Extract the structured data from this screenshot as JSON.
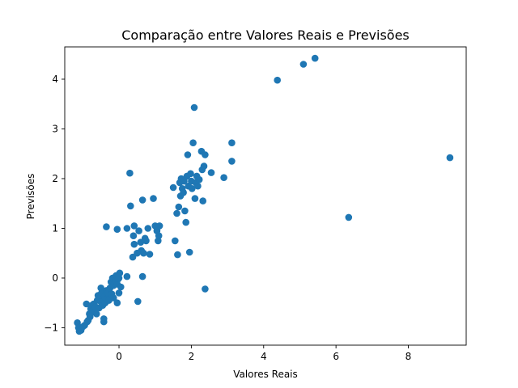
{
  "chart_data": {
    "type": "scatter",
    "title": "Comparação entre Valores Reais e Previsões",
    "xlabel": "Valores Reais",
    "ylabel": "Previsões",
    "xlim": [
      -1.5,
      9.6
    ],
    "ylim": [
      -1.35,
      4.65
    ],
    "x_ticks": [
      0,
      2,
      4,
      6,
      8
    ],
    "y_ticks": [
      -1,
      0,
      1,
      2,
      3,
      4
    ],
    "x_tick_labels": [
      "0",
      "2",
      "4",
      "6",
      "8"
    ],
    "y_tick_labels": [
      "−1",
      "0",
      "1",
      "2",
      "3",
      "4"
    ],
    "grid": false,
    "legend": "none",
    "color": "#1f77b4",
    "points": [
      [
        -1.15,
        -0.9
      ],
      [
        -1.12,
        -1.0
      ],
      [
        -1.1,
        -1.07
      ],
      [
        -1.05,
        -1.05
      ],
      [
        -1.0,
        -0.98
      ],
      [
        -0.95,
        -0.95
      ],
      [
        -0.9,
        -0.52
      ],
      [
        -0.88,
        -0.88
      ],
      [
        -0.85,
        -0.85
      ],
      [
        -0.82,
        -0.72
      ],
      [
        -0.8,
        -0.78
      ],
      [
        -0.78,
        -0.62
      ],
      [
        -0.75,
        -0.55
      ],
      [
        -0.72,
        -0.68
      ],
      [
        -0.7,
        -0.52
      ],
      [
        -0.68,
        -0.65
      ],
      [
        -0.65,
        -0.58
      ],
      [
        -0.62,
        -0.72
      ],
      [
        -0.6,
        -0.45
      ],
      [
        -0.58,
        -0.35
      ],
      [
        -0.55,
        -0.6
      ],
      [
        -0.52,
        -0.4
      ],
      [
        -0.5,
        -0.2
      ],
      [
        -0.5,
        -0.48
      ],
      [
        -0.48,
        -0.3
      ],
      [
        -0.45,
        -0.55
      ],
      [
        -0.42,
        -0.82
      ],
      [
        -0.42,
        -0.88
      ],
      [
        -0.4,
        -0.38
      ],
      [
        -0.38,
        -0.5
      ],
      [
        -0.35,
        -0.25
      ],
      [
        -0.32,
        -0.42
      ],
      [
        -0.3,
        -0.3
      ],
      [
        -0.28,
        -0.45
      ],
      [
        -0.25,
        -0.2
      ],
      [
        -0.22,
        -0.08
      ],
      [
        -0.2,
        -0.32
      ],
      [
        -0.18,
        0.0
      ],
      [
        -0.15,
        -0.15
      ],
      [
        -0.15,
        -0.4
      ],
      [
        -0.12,
        -0.1
      ],
      [
        -0.1,
        -0.05
      ],
      [
        -0.08,
        0.05
      ],
      [
        -0.05,
        -0.12
      ],
      [
        -0.05,
        -0.5
      ],
      [
        -0.02,
        -0.02
      ],
      [
        0.0,
        0.0
      ],
      [
        0.0,
        -0.3
      ],
      [
        0.02,
        0.1
      ],
      [
        0.05,
        -0.18
      ],
      [
        -0.35,
        1.03
      ],
      [
        -0.05,
        0.98
      ],
      [
        0.22,
        0.03
      ],
      [
        0.22,
        1.0
      ],
      [
        0.3,
        2.11
      ],
      [
        0.32,
        1.45
      ],
      [
        0.38,
        0.42
      ],
      [
        0.4,
        0.85
      ],
      [
        0.42,
        0.68
      ],
      [
        0.42,
        1.05
      ],
      [
        0.5,
        0.5
      ],
      [
        0.52,
        -0.47
      ],
      [
        0.55,
        0.95
      ],
      [
        0.6,
        0.72
      ],
      [
        0.62,
        0.55
      ],
      [
        0.65,
        0.03
      ],
      [
        0.65,
        1.57
      ],
      [
        0.68,
        0.5
      ],
      [
        0.72,
        0.8
      ],
      [
        0.75,
        0.75
      ],
      [
        0.8,
        1.0
      ],
      [
        0.85,
        0.48
      ],
      [
        0.95,
        1.6
      ],
      [
        1.0,
        1.05
      ],
      [
        1.05,
        0.95
      ],
      [
        1.08,
        0.75
      ],
      [
        1.1,
        0.85
      ],
      [
        1.12,
        1.05
      ],
      [
        1.5,
        1.82
      ],
      [
        1.55,
        0.75
      ],
      [
        1.6,
        1.3
      ],
      [
        1.62,
        0.47
      ],
      [
        1.65,
        1.43
      ],
      [
        1.68,
        1.92
      ],
      [
        1.7,
        1.65
      ],
      [
        1.72,
        2.0
      ],
      [
        1.75,
        1.8
      ],
      [
        1.78,
        1.72
      ],
      [
        1.8,
        1.95
      ],
      [
        1.82,
        1.35
      ],
      [
        1.85,
        1.12
      ],
      [
        1.88,
        2.05
      ],
      [
        1.9,
        2.48
      ],
      [
        1.92,
        1.85
      ],
      [
        1.95,
        0.52
      ],
      [
        1.98,
        2.1
      ],
      [
        2.0,
        1.95
      ],
      [
        2.02,
        1.8
      ],
      [
        2.05,
        2.72
      ],
      [
        2.08,
        3.43
      ],
      [
        2.1,
        1.6
      ],
      [
        2.12,
        1.92
      ],
      [
        2.15,
        2.05
      ],
      [
        2.18,
        1.85
      ],
      [
        2.22,
        1.98
      ],
      [
        2.28,
        2.55
      ],
      [
        2.3,
        2.18
      ],
      [
        2.32,
        1.55
      ],
      [
        2.35,
        2.25
      ],
      [
        2.38,
        2.48
      ],
      [
        2.38,
        -0.22
      ],
      [
        2.55,
        2.12
      ],
      [
        2.9,
        2.02
      ],
      [
        3.12,
        2.72
      ],
      [
        3.12,
        2.35
      ],
      [
        4.38,
        3.98
      ],
      [
        5.1,
        4.3
      ],
      [
        5.42,
        4.42
      ],
      [
        6.35,
        1.22
      ],
      [
        9.15,
        2.42
      ]
    ]
  }
}
